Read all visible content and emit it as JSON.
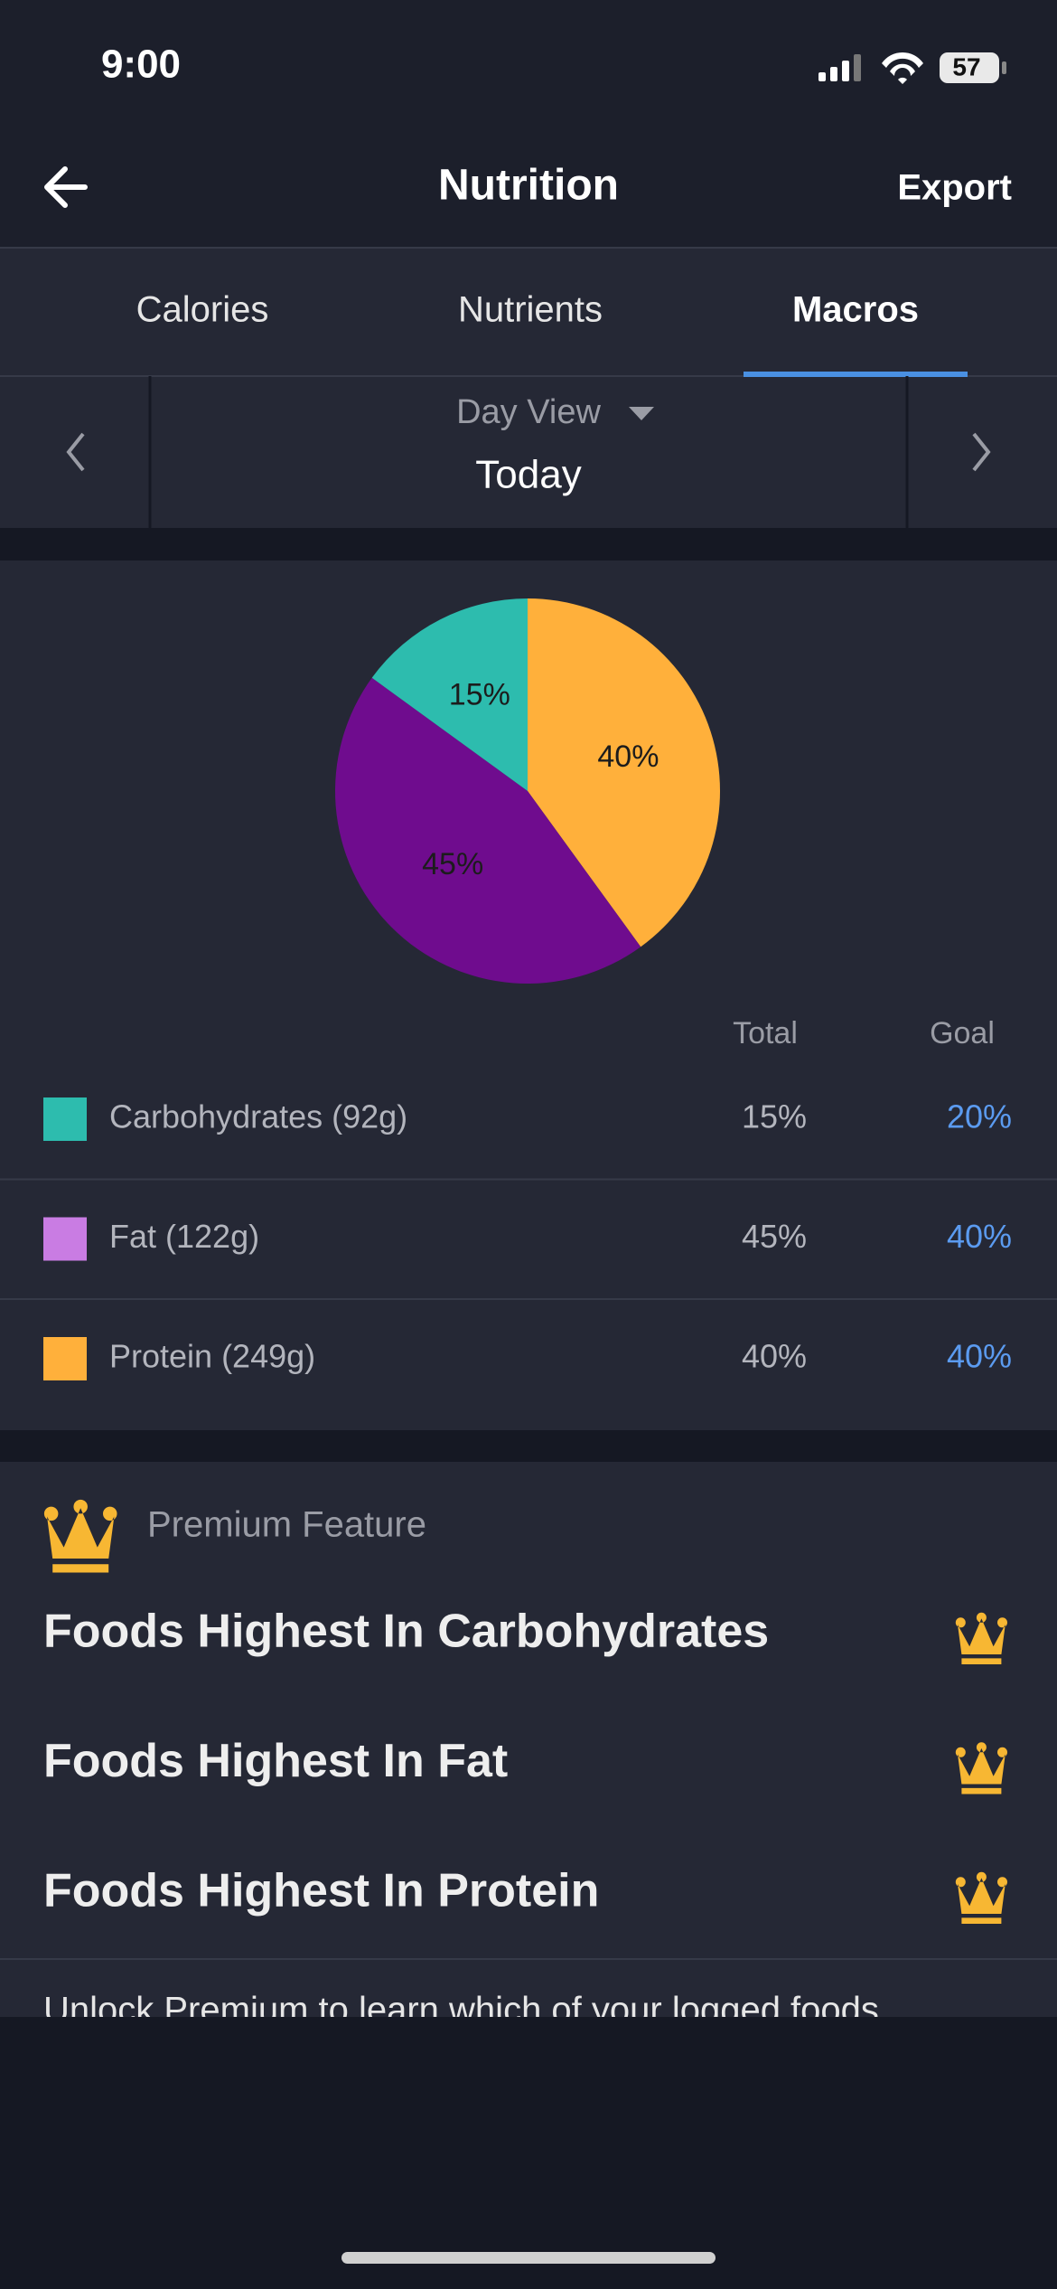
{
  "status_bar": {
    "time": "9:00",
    "battery": "57"
  },
  "header": {
    "title": "Nutrition",
    "action": "Export"
  },
  "tabs": {
    "items": [
      "Calories",
      "Nutrients",
      "Macros"
    ],
    "active": 2
  },
  "date_nav": {
    "view": "Day View",
    "date": "Today"
  },
  "chart_data": {
    "type": "pie",
    "values": [
      40,
      45,
      15
    ],
    "value_labels": [
      "40%",
      "45%",
      "15%"
    ],
    "colors": [
      "#ffb03b",
      "#6f0c8e",
      "#2dbcae"
    ]
  },
  "table": {
    "columns": [
      "Total",
      "Goal"
    ],
    "rows": [
      {
        "label": "Carbohydrates (92g)",
        "color": "#2dbcae",
        "total": "15%",
        "goal": "20%"
      },
      {
        "label": "Fat (122g)",
        "color": "#c97ce3",
        "total": "45%",
        "goal": "40%"
      },
      {
        "label": "Protein (249g)",
        "color": "#ffb03b",
        "total": "40%",
        "goal": "40%"
      }
    ]
  },
  "premium": {
    "badge": "Premium Feature",
    "items": [
      "Foods Highest In Carbohydrates",
      "Foods Highest In Fat",
      "Foods Highest In Protein"
    ],
    "footer": "Unlock Premium to learn which of your logged foods"
  }
}
